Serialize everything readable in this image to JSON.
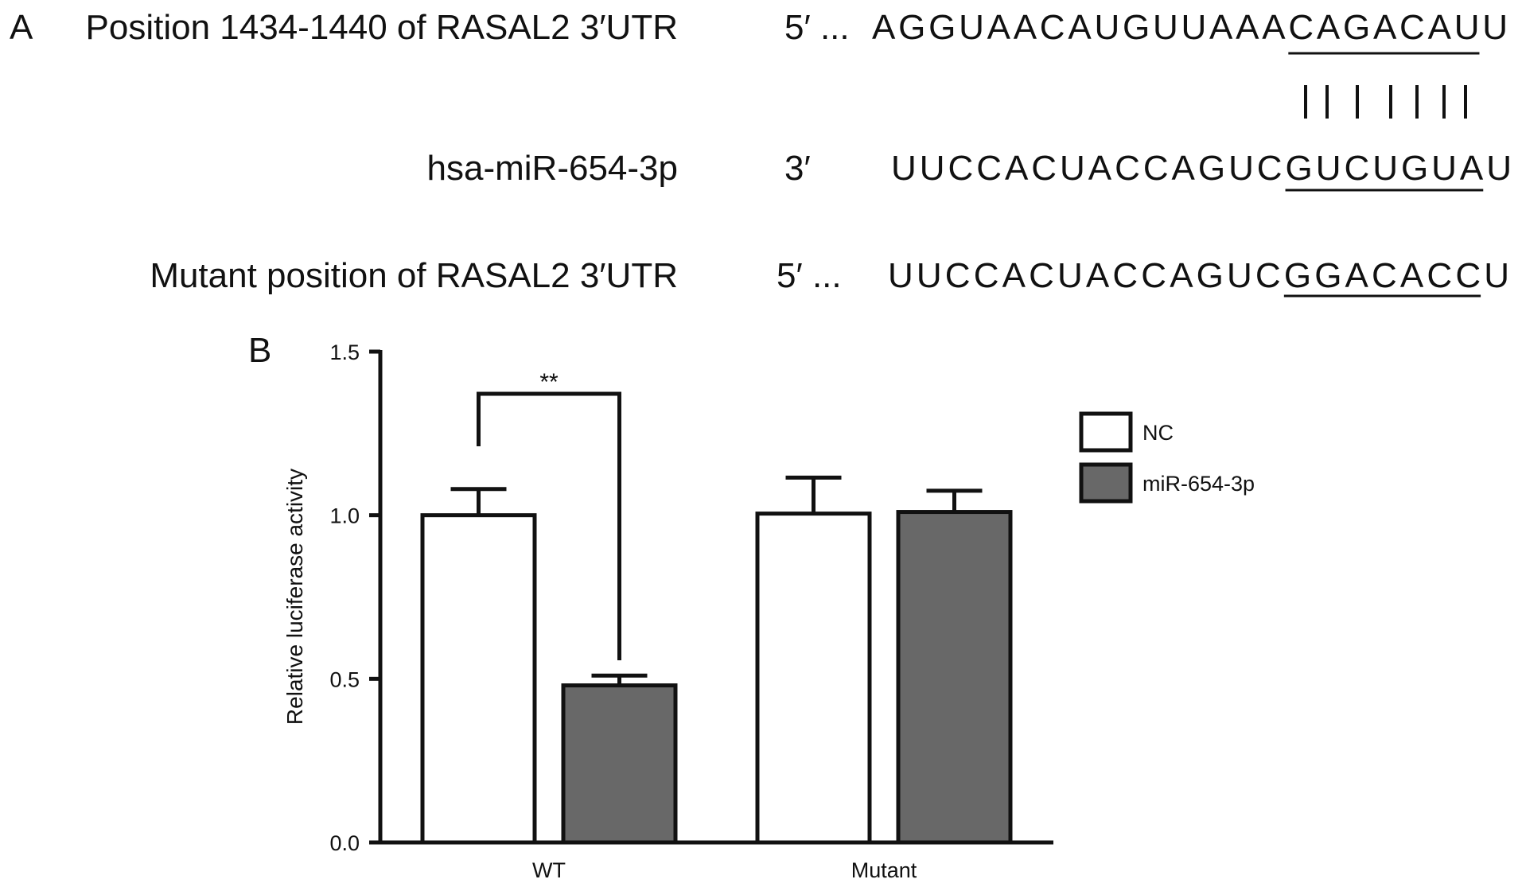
{
  "panel_a": {
    "label": "A",
    "rows": [
      {
        "label": "Position 1434-1440 of RASAL2 3′UTR",
        "prime": "5′ ...",
        "seq_pre": "AGGUAACAUGUUAAA",
        "seq_match": "CAGACAU",
        "seq_post": "U"
      },
      {
        "label": "hsa-miR-654-3p",
        "prime": "3′",
        "seq_pre": "UUCCACUACCAGUC",
        "seq_match": "GUCUGUA",
        "seq_post": "U"
      },
      {
        "label": "Mutant position of RASAL2 3′UTR",
        "prime": "5′ ...",
        "seq_pre": "UUCCACUACCAGUC",
        "seq_match": "GGACACC",
        "seq_post": "U"
      }
    ]
  },
  "chart_data": {
    "type": "bar",
    "panel_label": "B",
    "ylabel": "Relative luciferase activity",
    "categories": [
      "WT",
      "Mutant"
    ],
    "series": [
      {
        "name": "NC",
        "color": "#ffffff",
        "values": [
          1.0,
          1.005
        ],
        "errors": [
          0.08,
          0.11
        ]
      },
      {
        "name": "miR-654-3p",
        "color": "#686868",
        "values": [
          0.48,
          1.01
        ],
        "errors": [
          0.03,
          0.065
        ]
      }
    ],
    "ylim": [
      0,
      1.5
    ],
    "yticks": [
      {
        "value": 0,
        "label": "0.0"
      },
      {
        "value": 0.5,
        "label": "0.5"
      },
      {
        "value": 1,
        "label": "1.0"
      },
      {
        "value": 1.5,
        "label": "1.5"
      }
    ],
    "annotation": "**"
  }
}
